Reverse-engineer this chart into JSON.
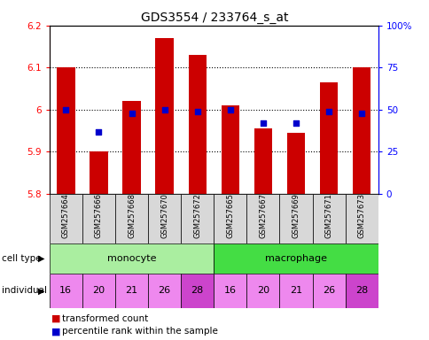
{
  "title": "GDS3554 / 233764_s_at",
  "samples": [
    "GSM257664",
    "GSM257666",
    "GSM257668",
    "GSM257670",
    "GSM257672",
    "GSM257665",
    "GSM257667",
    "GSM257669",
    "GSM257671",
    "GSM257673"
  ],
  "bar_values": [
    6.1,
    5.9,
    6.02,
    6.17,
    6.13,
    6.01,
    5.955,
    5.945,
    6.065,
    6.1
  ],
  "percentile_values": [
    50,
    37,
    48,
    50,
    49,
    50,
    42,
    42,
    49,
    48
  ],
  "ylim": [
    5.8,
    6.2
  ],
  "yticks": [
    5.8,
    5.9,
    6.0,
    6.1,
    6.2
  ],
  "ytick_labels": [
    "5.8",
    "5.9",
    "6",
    "6.1",
    "6.2"
  ],
  "y2ticks": [
    0,
    25,
    50,
    75,
    100
  ],
  "y2labels": [
    "0",
    "25",
    "50",
    "75",
    "100%"
  ],
  "bar_color": "#cc0000",
  "dot_color": "#0000cc",
  "individuals": [
    "16",
    "20",
    "21",
    "26",
    "28",
    "16",
    "20",
    "21",
    "26",
    "28"
  ],
  "individual_highlight": [
    false,
    false,
    false,
    false,
    true,
    false,
    false,
    false,
    false,
    true
  ],
  "cell_type_monocyte_color": "#aaeea0",
  "cell_type_macrophage_color": "#44dd44",
  "ind_normal_color": "#ee88ee",
  "ind_highlight_color": "#cc44cc",
  "label_bg_color": "#d8d8d8",
  "legend_red_label": "transformed count",
  "legend_blue_label": "percentile rank within the sample",
  "fig_width": 4.85,
  "fig_height": 3.84
}
